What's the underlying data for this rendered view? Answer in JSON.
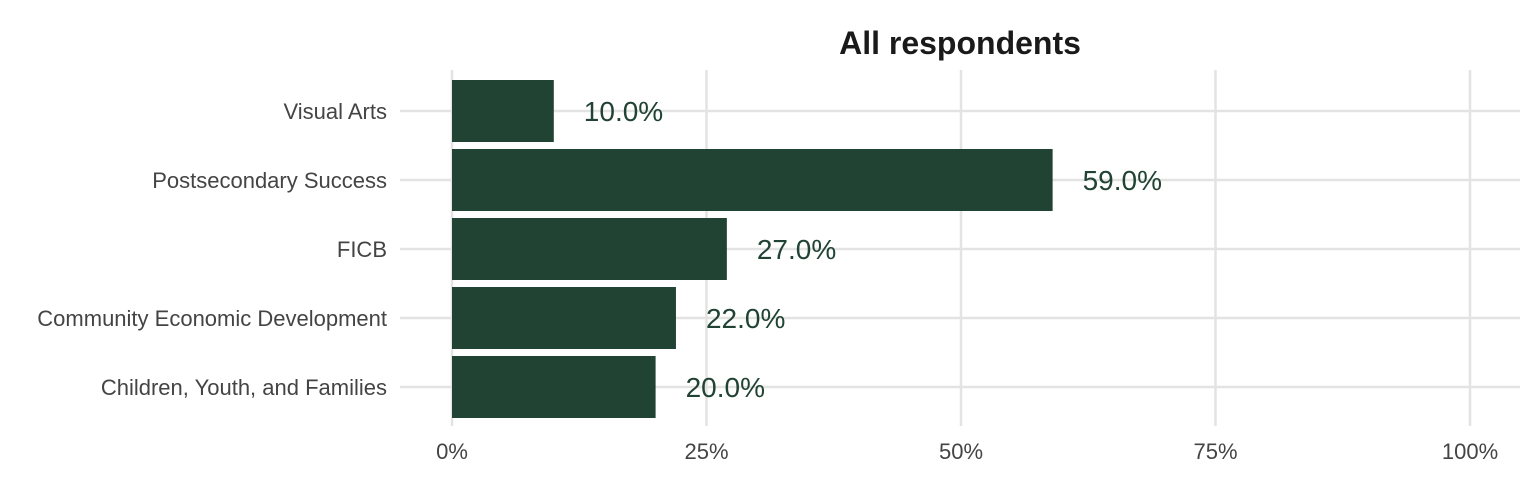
{
  "chart_data": {
    "type": "bar",
    "orientation": "horizontal",
    "title": "All respondents",
    "xlabel": "",
    "ylabel": "",
    "categories": [
      "Visual Arts",
      "Postsecondary Success",
      "FICB",
      "Community Economic Development",
      "Children, Youth, and Families"
    ],
    "values": [
      10.0,
      59.0,
      27.0,
      22.0,
      20.0
    ],
    "data_labels": [
      "10.0%",
      "59.0%",
      "27.0%",
      "22.0%",
      "20.0%"
    ],
    "xlim": [
      0,
      100
    ],
    "x_ticks": [
      0,
      25,
      50,
      75,
      100
    ],
    "x_tick_labels": [
      "0%",
      "25%",
      "50%",
      "75%",
      "100%"
    ],
    "grid": true,
    "legend": "none",
    "bar_color": "#214334",
    "label_color": "#214334"
  }
}
